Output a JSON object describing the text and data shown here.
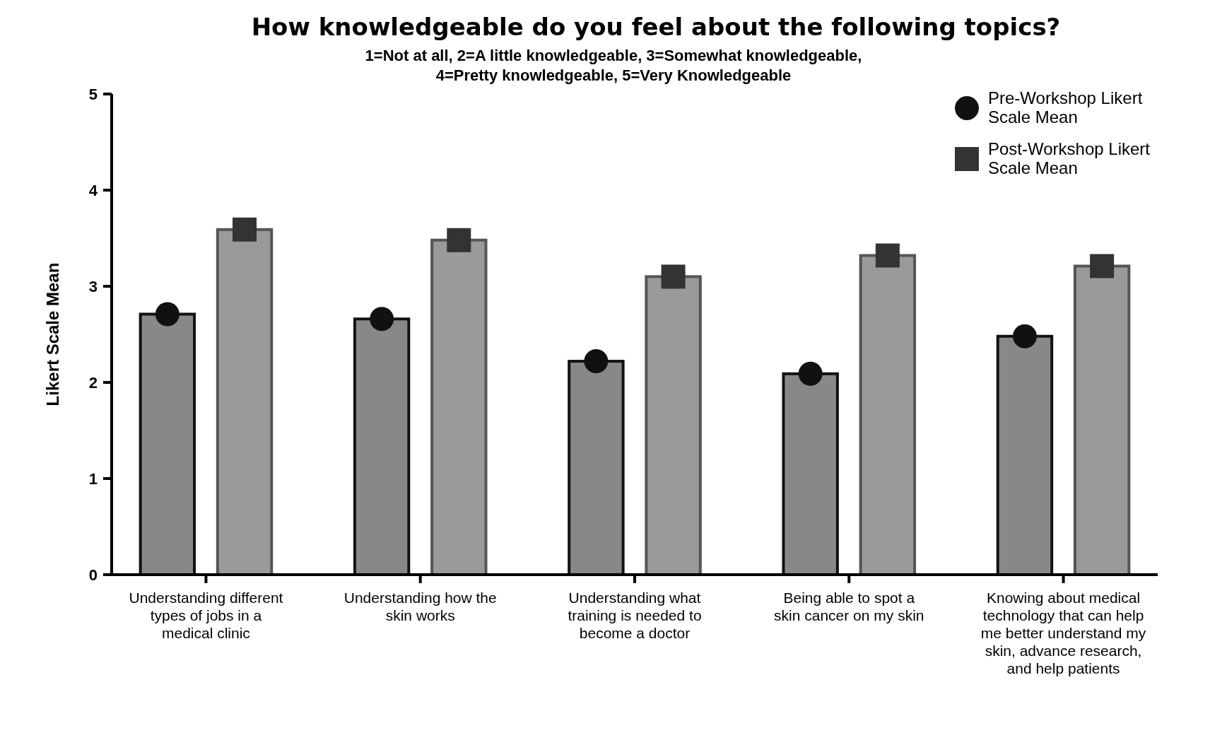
{
  "chart_data": {
    "type": "bar",
    "title": "How knowledgeable do you feel about the following topics?",
    "subtitle": "1=Not at all, 2=A little knowledgeable, 3=Somewhat knowledgeable, 4=Pretty knowledgeable, 5=Very Knowledgeable",
    "ylabel": "Likert Scale Mean",
    "categories": [
      "Understanding different types of jobs in a medical clinic",
      "Understanding how the skin works",
      "Understanding what training is needed to become a doctor",
      "Being able to spot a skin cancer on my skin",
      "Knowing about medical technology that can help me better understand my skin, advance research, and help patients"
    ],
    "series": [
      {
        "color": "#888888",
        "values": [
          2.71,
          2.66,
          2.22,
          2.09,
          2.48
        ]
      },
      {
        "color": "#9a9a9a",
        "values": [
          3.59,
          3.48,
          3.1,
          3.32,
          3.21
        ]
      },
      {
        "type": "scatter",
        "name": "Pre-Workshop Likert Scale Mean",
        "color": "#111111",
        "marker": "circle",
        "x": [
          "Understanding different types of jobs in a medical clinic",
          "Understanding how the skin works",
          "Understanding what training is needed to become a doctor",
          "Being able to spot a skin cancer on my skin",
          "Knowing about medical technology that can help me better understand my skin, advance research, and help patients"
        ],
        "values": [
          2.71,
          2.66,
          2.22,
          2.09,
          2.48
        ]
      },
      {
        "type": "scatter",
        "name": "Post-Workshop Likert Scale Mean",
        "color": "#333333",
        "marker": "square",
        "x": [
          "Understanding different types of jobs in a medical clinic",
          "Understanding how the skin works",
          "Understanding what training is needed to become a doctor",
          "Being able to spot a skin cancer on my skin",
          "Knowing about medical technology that can help me better understand my skin, advance research, and help patients"
        ],
        "values": [
          3.59,
          3.48,
          3.1,
          3.32,
          3.21
        ]
      }
    ],
    "ylim": [
      0,
      5
    ],
    "yticks": [
      0,
      1,
      2,
      3,
      4,
      5
    ],
    "legend": "top right"
  }
}
